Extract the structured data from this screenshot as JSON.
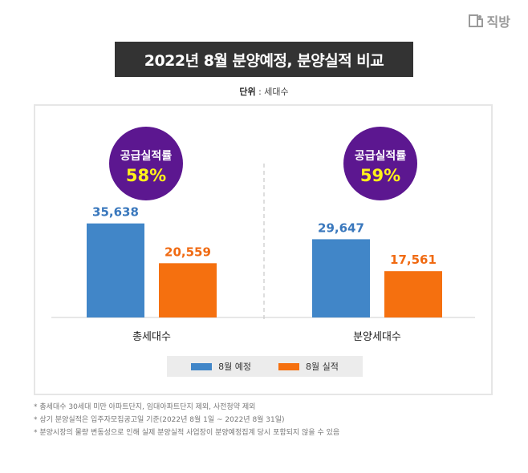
{
  "brand": {
    "name": "직방"
  },
  "title": "2022년 8월 분양예정, 분양실적 비교",
  "unit": {
    "label": "단위",
    "separator": " : ",
    "value": "세대수"
  },
  "colors": {
    "planned": "#4186c8",
    "actual": "#f5700f",
    "badge": "#5c1790",
    "badge_pct": "#fff21a",
    "value_blue": "#3a78bd",
    "value_orange": "#f06a12"
  },
  "chart_data": {
    "type": "bar",
    "categories": [
      "총세대수",
      "분양세대수"
    ],
    "series": [
      {
        "name": "8월 예정",
        "values": [
          35638,
          29647
        ]
      },
      {
        "name": "8월 실적",
        "values": [
          20559,
          17561
        ]
      }
    ],
    "value_labels": [
      [
        "35,638",
        "20,559"
      ],
      [
        "29,647",
        "17,561"
      ]
    ],
    "badges": [
      {
        "label": "공급실적률",
        "value": "58%"
      },
      {
        "label": "공급실적률",
        "value": "59%"
      }
    ],
    "ylim": [
      0,
      48000
    ],
    "grid": false,
    "legend_position": "bottom"
  },
  "legend": [
    {
      "label": "8월 예정",
      "color": "#4186c8"
    },
    {
      "label": "8월 실적",
      "color": "#f5700f"
    }
  ],
  "notes": [
    "* 총세대수 30세대 미만 아파트단지, 임대아파트단지 제외, 사전청약 제외",
    "* 상기 분양실적은 입주자모집공고일 기준(2022년 8월 1일 ~ 2022년 8월 31일)",
    "* 분양시장의 물량 변동성으로 인해 실제 분양실적 사업장이 분양예정집계 당시 포함되지 않을 수 있음"
  ]
}
